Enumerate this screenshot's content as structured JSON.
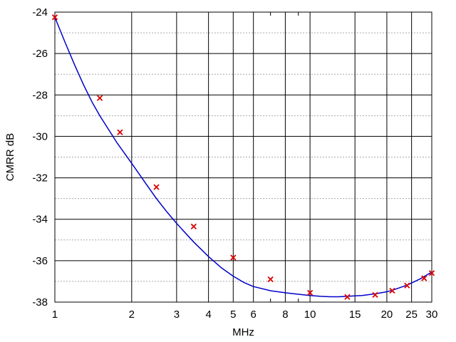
{
  "chart_data": {
    "type": "line",
    "title": "",
    "xlabel": "MHz",
    "ylabel": "CMRR dB",
    "x_scale": "log",
    "xlim": [
      1,
      30
    ],
    "ylim": [
      -38,
      -24
    ],
    "x_ticks": [
      1,
      2,
      3,
      4,
      5,
      6,
      8,
      10,
      15,
      20,
      25,
      30
    ],
    "x_tick_labels": [
      "1",
      "2",
      "3",
      "4",
      "5",
      "6",
      "8",
      "10",
      "15",
      "20",
      "25",
      "30"
    ],
    "x_minor_ticks": [
      7,
      9
    ],
    "y_ticks": [
      -38,
      -36,
      -34,
      -32,
      -30,
      -28,
      -26,
      -24
    ],
    "y_tick_labels": [
      "-38",
      "-36",
      "-34",
      "-32",
      "-30",
      "-28",
      "-26",
      "-24"
    ],
    "y_minor_ticks": [
      -37,
      -35,
      -33,
      -31,
      -29,
      -27,
      -25
    ],
    "grid": "on",
    "legend": "none",
    "series": [
      {
        "kind": "fit-curve",
        "color": "#0000cc",
        "x": [
          1,
          1.1,
          1.2,
          1.3,
          1.4,
          1.5,
          1.75,
          2,
          2.25,
          2.5,
          2.75,
          3,
          3.5,
          4,
          4.5,
          5,
          5.5,
          6,
          7,
          8,
          9,
          10,
          11,
          12,
          13,
          14,
          15,
          16,
          18,
          20,
          21,
          24,
          27,
          30
        ],
        "y": [
          -24.25,
          -25.5,
          -26.6,
          -27.55,
          -28.35,
          -29.0,
          -30.3,
          -31.3,
          -32.2,
          -33.0,
          -33.65,
          -34.2,
          -35.1,
          -35.8,
          -36.35,
          -36.75,
          -37.05,
          -37.25,
          -37.45,
          -37.55,
          -37.62,
          -37.68,
          -37.72,
          -37.74,
          -37.74,
          -37.72,
          -37.7,
          -37.68,
          -37.6,
          -37.5,
          -37.43,
          -37.18,
          -36.88,
          -36.55
        ]
      },
      {
        "kind": "measured-points",
        "color": "#dd0000",
        "marker": "x",
        "x": [
          1.0,
          1.5,
          1.8,
          2.5,
          3.5,
          5.0,
          7.0,
          10.0,
          14.0,
          18.0,
          21.0,
          24.0,
          28.0,
          30.0
        ],
        "y": [
          -24.25,
          -28.15,
          -29.8,
          -32.45,
          -34.35,
          -35.85,
          -36.9,
          -37.55,
          -37.75,
          -37.65,
          -37.45,
          -37.2,
          -36.85,
          -36.6
        ]
      }
    ]
  }
}
